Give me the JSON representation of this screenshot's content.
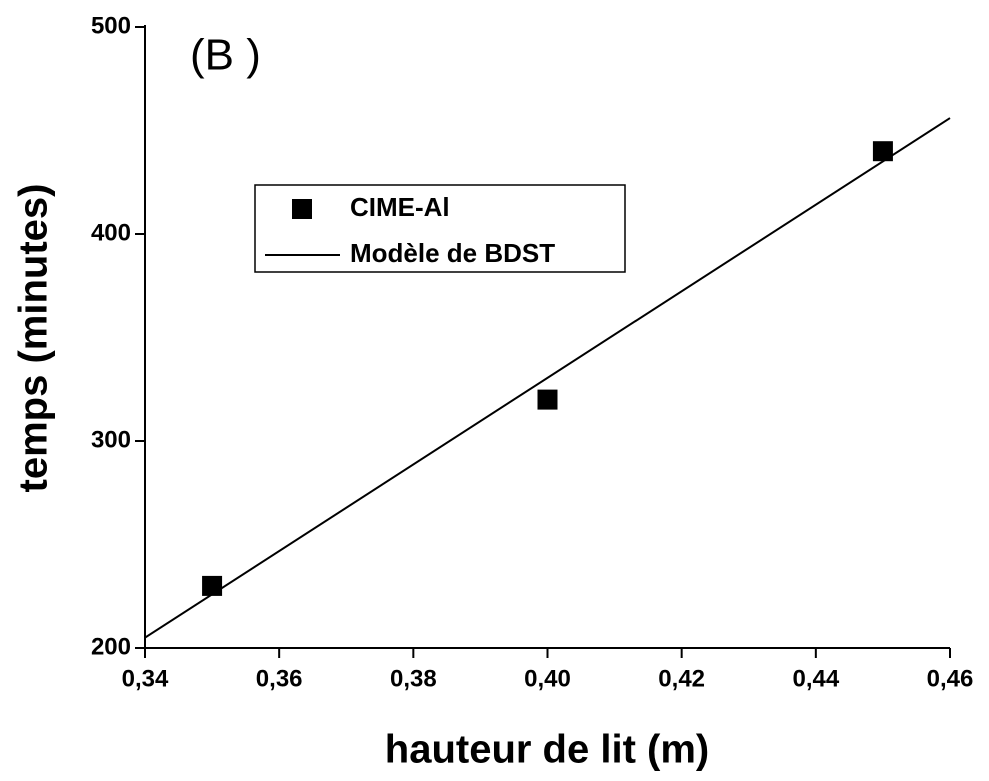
{
  "chart_data": {
    "type": "scatter",
    "annotation": "(B )",
    "xlabel": "hauteur de lit (m)",
    "ylabel": "temps (minutes)",
    "xlim": [
      0.34,
      0.46
    ],
    "ylim": [
      200,
      500
    ],
    "xticks": [
      {
        "value": 0.34,
        "label": "0,34"
      },
      {
        "value": 0.36,
        "label": "0,36"
      },
      {
        "value": 0.38,
        "label": "0,38"
      },
      {
        "value": 0.4,
        "label": "0,40"
      },
      {
        "value": 0.42,
        "label": "0,42"
      },
      {
        "value": 0.44,
        "label": "0,44"
      },
      {
        "value": 0.46,
        "label": "0,46"
      }
    ],
    "yticks": [
      200,
      300,
      400,
      500
    ],
    "series": [
      {
        "name": "CIME-Al",
        "color": "#000000",
        "x": [
          0.35,
          0.4,
          0.45
        ],
        "values": [
          230,
          320,
          440
        ]
      },
      {
        "name": "Modèle de BDST",
        "type": "line",
        "color": "#000000",
        "x": [
          0.34,
          0.46
        ],
        "values": [
          205,
          456
        ]
      }
    ]
  }
}
